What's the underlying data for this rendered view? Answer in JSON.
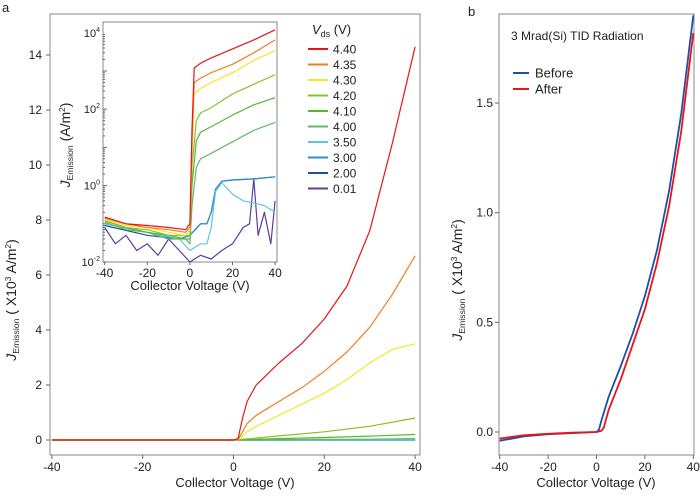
{
  "chart_data": [
    {
      "panel_label": "a",
      "type": "line",
      "xlabel": "Collector Voltage (V)",
      "ylabel": {
        "symbol": "J",
        "subscript": "Emission",
        "unit": "( X10",
        "unit_sup": "3",
        "unit_rest": " A/m",
        "unit_sup2": "2",
        "unit_close": ")"
      },
      "xlim": [
        -42,
        42
      ],
      "ylim": [
        -0.5,
        15.2
      ],
      "xticks": [
        -40,
        -20,
        0,
        20,
        40
      ],
      "yticks": [
        0,
        2,
        4,
        6,
        8,
        10,
        12,
        14
      ],
      "grid": false,
      "legend": {
        "title": "V",
        "title_sub": "ds",
        "title_unit": " (V)",
        "placement": "top-right"
      },
      "series": [
        {
          "name": "4.40",
          "color": "#e8141b",
          "x": [
            -40,
            0,
            1,
            2,
            3,
            5,
            10,
            15,
            20,
            25,
            30,
            35,
            40
          ],
          "y": [
            0,
            0,
            0.05,
            0.8,
            1.4,
            2.0,
            2.8,
            3.5,
            4.4,
            5.6,
            7.6,
            10.8,
            14.3
          ]
        },
        {
          "name": "4.35",
          "color": "#f07f1e",
          "x": [
            -40,
            0,
            1,
            2,
            3,
            5,
            10,
            15,
            20,
            25,
            30,
            35,
            40
          ],
          "y": [
            0,
            0,
            0.02,
            0.3,
            0.6,
            0.9,
            1.4,
            1.9,
            2.5,
            3.2,
            4.1,
            5.3,
            6.7
          ]
        },
        {
          "name": "4.30",
          "color": "#eeea2a",
          "x": [
            -40,
            0,
            1,
            2,
            3,
            5,
            10,
            15,
            20,
            25,
            30,
            35,
            40
          ],
          "y": [
            0,
            0,
            0.01,
            0.15,
            0.3,
            0.5,
            0.9,
            1.3,
            1.7,
            2.2,
            2.8,
            3.3,
            3.5
          ]
        },
        {
          "name": "4.20",
          "color": "#86c225",
          "x": [
            -40,
            0,
            2,
            5,
            10,
            20,
            30,
            40
          ],
          "y": [
            0,
            0,
            0.03,
            0.07,
            0.15,
            0.3,
            0.5,
            0.8
          ]
        },
        {
          "name": "4.10",
          "color": "#5cb530",
          "x": [
            -40,
            0,
            2,
            5,
            10,
            20,
            30,
            40
          ],
          "y": [
            0,
            0,
            0.01,
            0.02,
            0.05,
            0.09,
            0.14,
            0.2
          ]
        },
        {
          "name": "4.00",
          "color": "#62b86b",
          "x": [
            -40,
            0,
            5,
            10,
            20,
            30,
            40
          ],
          "y": [
            0,
            0,
            0.005,
            0.01,
            0.02,
            0.03,
            0.05
          ]
        },
        {
          "name": "3.50",
          "color": "#5bc6df",
          "x": [
            -40,
            40
          ],
          "y": [
            0,
            0
          ]
        },
        {
          "name": "3.00",
          "color": "#2d8ed0",
          "x": [
            -40,
            40
          ],
          "y": [
            0,
            0
          ]
        },
        {
          "name": "2.00",
          "color": "#1f4fa6",
          "x": [
            -40,
            40
          ],
          "y": [
            0,
            0
          ]
        },
        {
          "name": "0.01",
          "color": "#5a3ea0",
          "x": [
            -40,
            40
          ],
          "y": [
            0,
            0
          ]
        }
      ],
      "inset": {
        "type": "line",
        "xlabel": "Collector Voltage (V)",
        "ylabel": {
          "symbol": "J",
          "subscript": "Emission",
          "unit": "(A/m",
          "unit_sup": "2",
          "unit_close": ")"
        },
        "xlim": [
          -40,
          40
        ],
        "ylim": [
          0.01,
          20000
        ],
        "yscale": "log",
        "xticks": [
          -40,
          -20,
          0,
          20,
          40
        ],
        "yticks": [
          {
            "base": "10",
            "exp": "4",
            "value": 10000
          },
          {
            "base": "10",
            "exp": "2",
            "value": 100
          },
          {
            "base": "10",
            "exp": "0",
            "value": 1
          },
          {
            "base": "10",
            "exp": "-2",
            "value": 0.01
          }
        ],
        "series": [
          {
            "name": "4.40",
            "x": [
              -40,
              -30,
              -20,
              -10,
              -2,
              0,
              1,
              2,
              5,
              10,
              20,
              30,
              40
            ],
            "y": [
              0.15,
              0.1,
              0.09,
              0.08,
              0.07,
              0.1,
              30,
              1200,
              1600,
              2200,
              3800,
              6500,
              12000
            ]
          },
          {
            "name": "4.35",
            "x": [
              -40,
              -30,
              -20,
              -10,
              -2,
              0,
              1,
              2,
              5,
              10,
              20,
              30,
              40
            ],
            "y": [
              0.14,
              0.1,
              0.08,
              0.07,
              0.06,
              0.08,
              15,
              500,
              650,
              900,
              1500,
              3000,
              6500
            ]
          },
          {
            "name": "4.30",
            "x": [
              -40,
              -30,
              -20,
              -10,
              -2,
              0,
              1,
              2,
              5,
              10,
              20,
              30,
              40
            ],
            "y": [
              0.13,
              0.09,
              0.08,
              0.06,
              0.05,
              0.07,
              8,
              250,
              350,
              500,
              900,
              1900,
              3400
            ]
          },
          {
            "name": "4.20",
            "x": [
              -40,
              -30,
              -20,
              -10,
              -2,
              0,
              1,
              3,
              5,
              10,
              20,
              30,
              40
            ],
            "y": [
              0.12,
              0.08,
              0.07,
              0.05,
              0.05,
              0.05,
              3,
              50,
              80,
              110,
              250,
              450,
              800
            ]
          },
          {
            "name": "4.10",
            "x": [
              -40,
              -30,
              -20,
              -10,
              -2,
              0,
              1,
              3,
              5,
              10,
              20,
              30,
              40
            ],
            "y": [
              0.12,
              0.08,
              0.06,
              0.05,
              0.04,
              0.04,
              1,
              15,
              25,
              35,
              70,
              130,
              200
            ]
          },
          {
            "name": "4.00",
            "x": [
              -40,
              -30,
              -20,
              -10,
              -2,
              0,
              1,
              3,
              5,
              10,
              20,
              30,
              40
            ],
            "y": [
              0.11,
              0.07,
              0.06,
              0.04,
              0.04,
              0.03,
              0.3,
              3,
              5,
              7,
              14,
              28,
              45
            ]
          },
          {
            "name": "3.50",
            "x": [
              -40,
              -20,
              -5,
              0,
              5,
              8,
              10,
              12,
              15,
              20,
              25,
              30,
              35,
              40
            ],
            "y": [
              0.1,
              0.06,
              0.04,
              0.02,
              0.03,
              0.03,
              0.08,
              0.7,
              1.2,
              0.6,
              0.4,
              0.35,
              0.3,
              0.2
            ]
          },
          {
            "name": "3.00",
            "x": [
              -40,
              -20,
              -5,
              0,
              5,
              8,
              10,
              12,
              15,
              20,
              30,
              40
            ],
            "y": [
              0.1,
              0.06,
              0.04,
              0.05,
              0.1,
              0.1,
              0.2,
              0.8,
              1.3,
              1.4,
              1.5,
              1.7
            ]
          },
          {
            "name": "2.00",
            "x": [
              -40,
              -20,
              -5,
              0,
              5,
              8,
              10,
              12,
              15,
              20,
              30,
              40
            ],
            "y": [
              0.09,
              0.05,
              0.04,
              0.05,
              0.1,
              0.1,
              0.2,
              0.8,
              1.3,
              1.4,
              1.5,
              1.7
            ]
          },
          {
            "name": "0.01",
            "x": [
              -40,
              -35,
              -30,
              -25,
              -20,
              -15,
              -10,
              -5,
              0,
              5,
              10,
              15,
              20,
              25,
              28,
              30,
              32,
              35,
              38,
              40
            ],
            "y": [
              0.08,
              0.03,
              0.05,
              0.02,
              0.03,
              0.015,
              0.04,
              0.02,
              0.01,
              0.015,
              0.012,
              0.02,
              0.03,
              0.08,
              0.1,
              1.5,
              0.05,
              0.2,
              0.03,
              0.4
            ]
          }
        ]
      }
    },
    {
      "panel_label": "b",
      "type": "line",
      "title": "3 Mrad(Si) TID Radiation",
      "xlabel": "Collector Voltage (V)",
      "ylabel": {
        "symbol": "J",
        "subscript": "Emission",
        "unit": "( X10",
        "unit_sup": "3",
        "unit_rest": " A/m",
        "unit_sup2": "2",
        "unit_close": ")"
      },
      "xlim": [
        -40,
        40
      ],
      "ylim": [
        -0.07,
        1.92
      ],
      "xticks": [
        -40,
        -20,
        0,
        20,
        40
      ],
      "yticks": [
        "0.0",
        "0.5",
        "1.0",
        "1.5"
      ],
      "grid": false,
      "legend": {
        "placement": "top-left"
      },
      "series": [
        {
          "name": "Before",
          "color": "#1f4fa6",
          "x": [
            -40,
            -30,
            -20,
            -10,
            0,
            1,
            2,
            5,
            10,
            15,
            20,
            25,
            30,
            35,
            40
          ],
          "y": [
            -0.04,
            -0.02,
            -0.01,
            -0.005,
            0,
            0.01,
            0.05,
            0.16,
            0.3,
            0.45,
            0.62,
            0.83,
            1.1,
            1.45,
            1.9
          ]
        },
        {
          "name": "After",
          "color": "#e8141b",
          "x": [
            -40,
            -30,
            -20,
            -10,
            0,
            2,
            3,
            5,
            10,
            15,
            20,
            25,
            30,
            35,
            40
          ],
          "y": [
            -0.03,
            -0.015,
            -0.008,
            -0.003,
            0,
            0.005,
            0.02,
            0.1,
            0.24,
            0.4,
            0.56,
            0.77,
            1.03,
            1.37,
            1.82
          ]
        }
      ]
    }
  ]
}
